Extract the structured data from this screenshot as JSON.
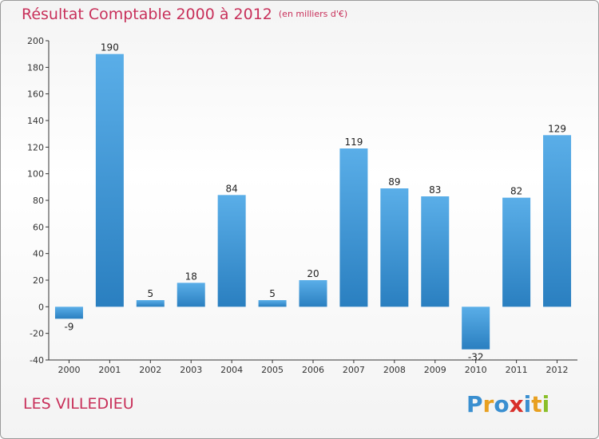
{
  "chart_data": {
    "type": "bar",
    "title": "Résultat Comptable 2000 à 2012",
    "subtitle": "(en milliers d'€)",
    "categories": [
      "2000",
      "2001",
      "2002",
      "2003",
      "2004",
      "2005",
      "2006",
      "2007",
      "2008",
      "2009",
      "2010",
      "2011",
      "2012"
    ],
    "values": [
      -9,
      190,
      5,
      18,
      84,
      5,
      20,
      119,
      89,
      83,
      -32,
      82,
      129
    ],
    "ylim": [
      -40,
      200
    ],
    "yticks": [
      -40,
      -20,
      0,
      20,
      40,
      60,
      80,
      100,
      120,
      140,
      160,
      180,
      200
    ],
    "xlabel": "",
    "ylabel": "",
    "grid": false,
    "bar_color_light": "#5aaee8",
    "bar_color_dark": "#2a7fc0"
  },
  "footer": {
    "commune": "LES VILLEDIEU",
    "logo_letters": [
      "P",
      "r",
      "o",
      "x",
      "i",
      "t",
      "i"
    ],
    "logo_colors": [
      "#3a8fd0",
      "#e8a020",
      "#3a8fd0",
      "#d8302a",
      "#3a8fd0",
      "#e8a020",
      "#8abf2a"
    ]
  },
  "colors": {
    "title": "#c8305a",
    "axis": "#333333"
  }
}
